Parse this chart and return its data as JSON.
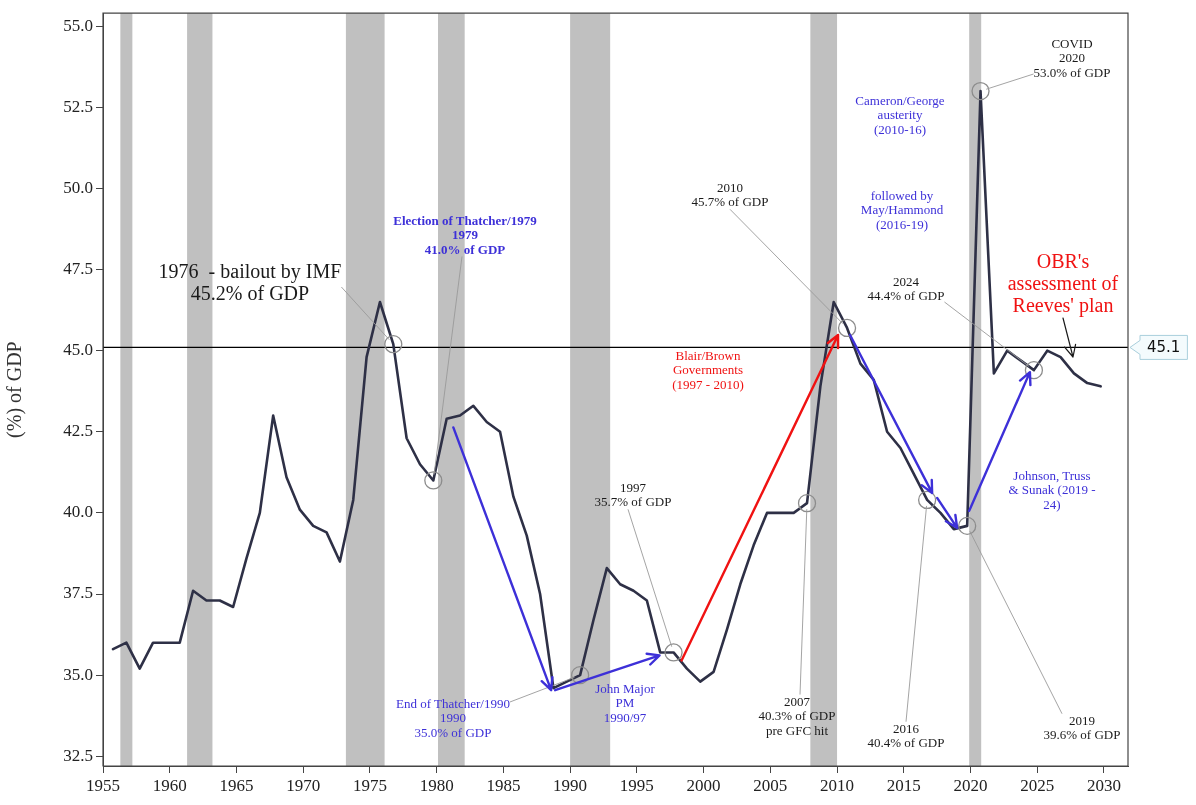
{
  "chart_data": {
    "type": "line",
    "ylabel": "(%) of GDP",
    "xlim": [
      1955,
      2031.8
    ],
    "ylim": [
      32.2,
      55.4
    ],
    "xticks": [
      1955,
      1960,
      1965,
      1970,
      1975,
      1980,
      1985,
      1990,
      1995,
      2000,
      2005,
      2010,
      2015,
      2020,
      2025,
      2030
    ],
    "yticks": [
      32.5,
      {
        "value": 35,
        "label": "35.0"
      },
      37.5,
      {
        "value": 40,
        "label": "40.0"
      },
      42.5,
      {
        "value": 45,
        "label": "45.0"
      },
      47.5,
      {
        "value": 50,
        "label": "50.0"
      },
      52.5,
      {
        "value": 55,
        "label": "55.0"
      }
    ],
    "series": [
      {
        "color": "#2e3046",
        "x": [
          1955.75,
          1956.75,
          1957.75,
          1958.75,
          1959.75,
          1960.75,
          1961.75,
          1962.75,
          1963.75,
          1964.75,
          1965.75,
          1966.75,
          1967.75,
          1968.75,
          1969.75,
          1970.75,
          1971.75,
          1972.75,
          1973.75,
          1974.75,
          1975.75,
          1976.75,
          1977.75,
          1978.75,
          1979.75,
          1980.75,
          1981.75,
          1982.75,
          1983.75,
          1984.75,
          1985.75,
          1986.75,
          1987.75,
          1988.75,
          1989.75,
          1990.75,
          1991.75,
          1992.75,
          1993.75,
          1994.75,
          1995.75,
          1996.75,
          1997.75,
          1998.75,
          1999.75,
          2000.75,
          2001.75,
          2002.75,
          2003.75,
          2004.75,
          2005.75,
          2006.75,
          2007.75,
          2008.75,
          2009.75,
          2010.75,
          2011.75,
          2012.75,
          2013.75,
          2014.75,
          2015.75,
          2016.75,
          2017.75,
          2018.75,
          2019.75,
          2020.75,
          2021.75,
          2022.75,
          2023.75,
          2024.75,
          2025.75,
          2026.75,
          2027.75,
          2028.75,
          2029.75
        ],
        "values": [
          35.8,
          36.0,
          35.2,
          36.0,
          36.0,
          36.0,
          37.6,
          37.3,
          37.3,
          37.1,
          38.6,
          40.0,
          43.0,
          41.1,
          40.1,
          39.6,
          39.4,
          38.5,
          40.4,
          44.8,
          46.5,
          45.2,
          42.3,
          41.5,
          41.0,
          42.9,
          43.0,
          43.3,
          42.8,
          42.5,
          40.5,
          39.3,
          37.5,
          34.6,
          34.8,
          35.0,
          36.7,
          38.3,
          37.8,
          37.6,
          37.3,
          35.7,
          35.7,
          35.2,
          34.8,
          35.1,
          36.4,
          37.8,
          39.0,
          40.0,
          40.0,
          40.0,
          40.3,
          43.9,
          46.5,
          45.7,
          44.6,
          44.1,
          42.5,
          42.0,
          41.2,
          40.4,
          40.0,
          39.5,
          39.6,
          53.0,
          44.3,
          45.0,
          44.7,
          44.4,
          45.0,
          44.8,
          44.3,
          44.0,
          43.9
        ]
      }
    ],
    "bands": [
      {
        "axis": "x",
        "from": 1956.3,
        "to": 1957.2,
        "color": "#c0c0c0"
      },
      {
        "axis": "x",
        "from": 1961.3,
        "to": 1963.2,
        "color": "#c0c0c0"
      },
      {
        "axis": "x",
        "from": 1973.2,
        "to": 1976.1,
        "color": "#c0c0c0"
      },
      {
        "axis": "x",
        "from": 1980.1,
        "to": 1982.1,
        "color": "#c0c0c0"
      },
      {
        "axis": "x",
        "from": 1990.0,
        "to": 1993.0,
        "color": "#c0c0c0"
      },
      {
        "axis": "x",
        "from": 2008.0,
        "to": 2010.0,
        "color": "#c0c0c0"
      },
      {
        "axis": "x",
        "from": 2019.9,
        "to": 2020.8,
        "color": "#c0c0c0"
      }
    ],
    "ref_lines": [
      {
        "axis": "y",
        "value": 45.1,
        "label": "45.1",
        "color": "#000000"
      }
    ],
    "annotations": [
      {
        "text": "1976  - bailout by IMF\n45.2% of GDP",
        "x": 1976.75,
        "y": 45.2
      },
      {
        "text": "Election of Thatcher/1979\n1979\n41.0% of GDP",
        "x": 1979.75,
        "y": 41.0
      },
      {
        "text": "End of Thatcher/1990\n1990\n35.0% of GDP",
        "x": 1990.75,
        "y": 35.0
      },
      {
        "text": "1997\n35.7% of GDP",
        "x": 1997.75,
        "y": 35.7
      },
      {
        "text": "2007\n40.3% of GDP\npre GFC hit",
        "x": 2007.75,
        "y": 40.3
      },
      {
        "text": "2010\n45.7% of GDP",
        "x": 2010.75,
        "y": 45.7
      },
      {
        "text": "2016\n40.4% of GDP",
        "x": 2016.75,
        "y": 40.4
      },
      {
        "text": "2019\n39.6% of GDP",
        "x": 2019.75,
        "y": 39.6
      },
      {
        "text": "COVID\n2020\n53.0% of GDP",
        "x": 2020.75,
        "y": 53.0
      },
      {
        "text": "2024\n44.4% of GDP",
        "x": 2024.75,
        "y": 44.4
      },
      "John Major\nPM\n1990/97",
      "Blair/Brown\nGovernments\n(1997 - 2010)",
      "Cameron/George\nausterity\n(2010-16)",
      "followed by\nMay/Hammond\n(2016-19)",
      "Johnson, Truss\n& Sunak (2019 -\n24)",
      "OBR's\nassessment of\nReeves' plan"
    ],
    "grid": false,
    "legend": false,
    "marker": "none",
    "line_style": "solid"
  }
}
